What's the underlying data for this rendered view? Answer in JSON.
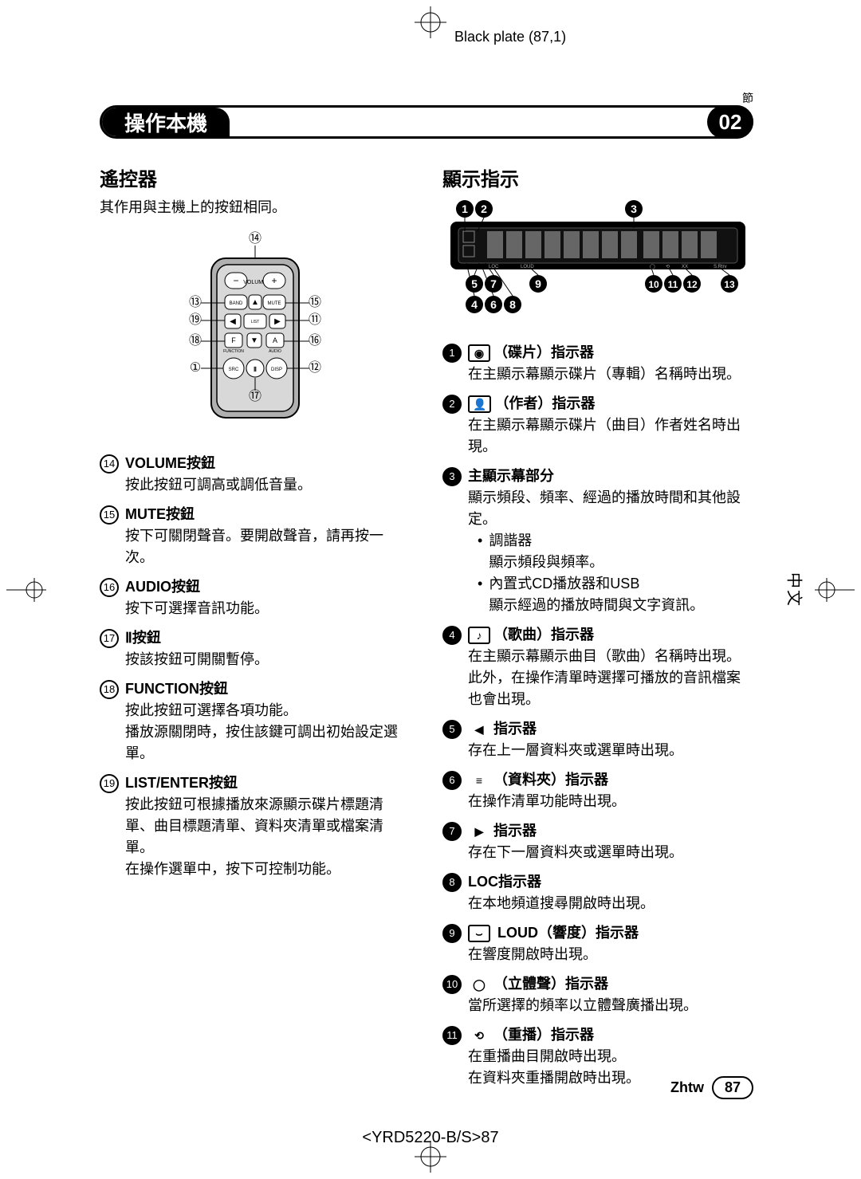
{
  "header": {
    "black_plate": "Black plate (87,1)",
    "chapter_tag": "節",
    "bar_title": "操作本機",
    "chapter_num": "02"
  },
  "left": {
    "heading": "遙控器",
    "intro": "其作用與主機上的按鈕相同。",
    "items": [
      {
        "num": "⑭",
        "label": "VOLUME按鈕",
        "desc": "按此按鈕可調高或調低音量。"
      },
      {
        "num": "⑮",
        "label": "MUTE按鈕",
        "desc": "按下可關閉聲音。要開啟聲音，請再按一次。"
      },
      {
        "num": "⑯",
        "label": "AUDIO按鈕",
        "desc": "按下可選擇音訊功能。"
      },
      {
        "num": "⑰",
        "label": "Ⅱ按鈕",
        "desc": "按該按鈕可開關暫停。"
      },
      {
        "num": "⑱",
        "label": "FUNCTION按鈕",
        "desc": "按此按鈕可選擇各項功能。\n播放源關閉時，按住該鍵可調出初始設定選單。"
      },
      {
        "num": "⑲",
        "label": "LIST/ENTER按鈕",
        "desc": "按此按鈕可根據播放來源顯示碟片標題清單、曲目標題清單、資料夾清單或檔案清單。\n在操作選單中，按下可控制功能。"
      }
    ]
  },
  "right": {
    "heading": "顯示指示",
    "items": [
      {
        "num": "1",
        "icon": "◉",
        "iconBordered": true,
        "label": "（碟片）指示器",
        "desc": "在主顯示幕顯示碟片（專輯）名稱時出現。"
      },
      {
        "num": "2",
        "icon": "👤",
        "iconBordered": true,
        "label": "（作者）指示器",
        "desc": "在主顯示幕顯示碟片（曲目）作者姓名時出現。"
      },
      {
        "num": "3",
        "icon": "",
        "label": "主顯示幕部分",
        "desc": "顯示頻段、頻率、經過的播放時間和其他設定。",
        "subs": [
          {
            "t": "調諧器",
            "d": "顯示頻段與頻率。"
          },
          {
            "t": "內置式CD播放器和USB",
            "d": "顯示經過的播放時間與文字資訊。"
          }
        ]
      },
      {
        "num": "4",
        "icon": "♪",
        "iconBordered": true,
        "label": "（歌曲）指示器",
        "desc": "在主顯示幕顯示曲目（歌曲）名稱時出現。此外，在操作清單時選擇可播放的音訊檔案也會出現。"
      },
      {
        "num": "5",
        "icon": "◀",
        "label": "指示器",
        "desc": "存在上一層資料夾或選單時出現。"
      },
      {
        "num": "6",
        "icon": "≡",
        "iconBordered": false,
        "label": "（資料夾）指示器",
        "desc": "在操作清單功能時出現。"
      },
      {
        "num": "7",
        "icon": "▶",
        "label": "指示器",
        "desc": "存在下一層資料夾或選單時出現。"
      },
      {
        "num": "8",
        "icon": "",
        "label": "LOC指示器",
        "desc": "在本地頻道搜尋開啟時出現。"
      },
      {
        "num": "9",
        "icon": "⌣",
        "iconBordered": true,
        "label": " LOUD（響度）指示器",
        "desc": "在響度開啟時出現。"
      },
      {
        "num": "10",
        "icon": "◯",
        "label": "（立體聲）指示器",
        "desc": "當所選擇的頻率以立體聲廣播出現。"
      },
      {
        "num": "11",
        "icon": "⟲",
        "label": "（重播）指示器",
        "desc": "在重播曲目開啟時出現。\n在資料夾重播開啟時出現。"
      }
    ]
  },
  "footer": {
    "lang": "Zhtw",
    "page": "87",
    "doc_code": "<YRD5220-B/S>87",
    "side_lang": "中文"
  },
  "remote_labels": {
    "n1": "①",
    "n11": "⑪",
    "n12": "⑫",
    "n13": "⑬",
    "n14": "⑭",
    "n15": "⑮",
    "n16": "⑯",
    "n17": "⑰",
    "n18": "⑱",
    "n19": "⑲"
  },
  "display_labels": {
    "n1": "1",
    "n2": "2",
    "n3": "3",
    "n4": "4",
    "n5": "5",
    "n6": "6",
    "n7": "7",
    "n8": "8",
    "n9": "9",
    "n10": "10",
    "n11": "11",
    "n12": "12",
    "n13": "13"
  }
}
